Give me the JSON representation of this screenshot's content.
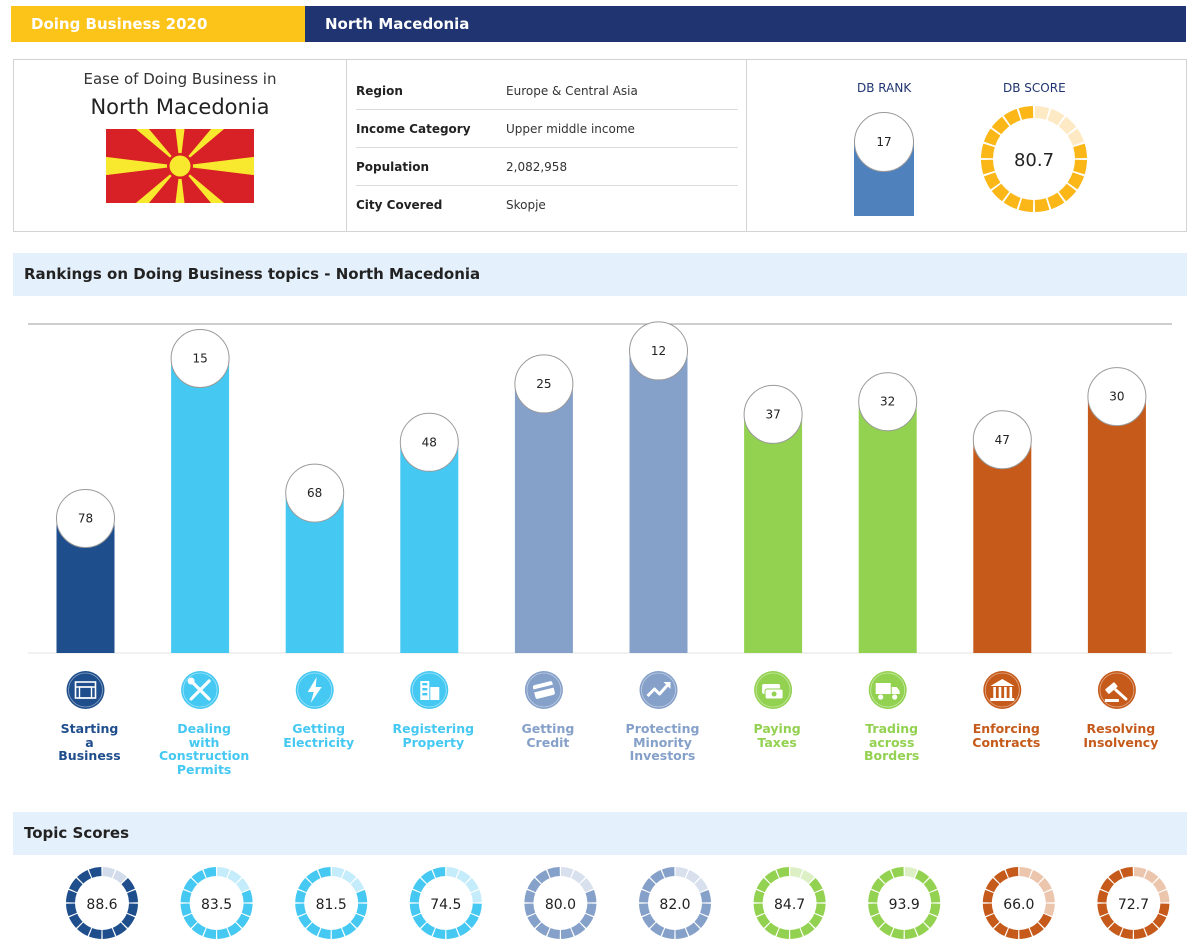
{
  "header": {
    "left": "Doing Business  2020",
    "right": "North Macedonia"
  },
  "info": {
    "subtitle": "Ease of Doing Business in",
    "country": "North Macedonia",
    "rows": [
      {
        "key": "Region",
        "value": "Europe & Central Asia"
      },
      {
        "key": "Income Category",
        "value": "Upper middle income"
      },
      {
        "key": "Population",
        "value": "2,082,958"
      },
      {
        "key": "City Covered",
        "value": "Skopje"
      }
    ],
    "rank_label": "DB RANK",
    "rank_value": "17",
    "score_label": "DB SCORE",
    "score_value": "80.7",
    "score_fraction": 0.807
  },
  "sections": {
    "rankings": "Rankings on Doing Business topics - North Macedonia",
    "scores": "Topic Scores"
  },
  "colors": {
    "header_yellow": "#fcc419",
    "header_navy": "#1f3470",
    "flag_red": "#d82126",
    "flag_yellow": "#f8e92e",
    "score_gold": "#fbb718"
  },
  "chart_data": {
    "type": "bar",
    "categories": [
      "Starting a Business",
      "Dealing with Construction Permits",
      "Getting Electricity",
      "Registering Property",
      "Getting Credit",
      "Protecting Minority Investors",
      "Paying Taxes",
      "Trading across Borders",
      "Enforcing Contracts",
      "Resolving Insolvency"
    ],
    "label_lines": [
      [
        "Starting",
        "a",
        "Business"
      ],
      [
        "Dealing",
        "with",
        "Construction",
        "Permits"
      ],
      [
        "Getting",
        "Electricity"
      ],
      [
        "Registering",
        "Property"
      ],
      [
        "Getting",
        "Credit"
      ],
      [
        "Protecting",
        "Minority",
        "Investors"
      ],
      [
        "Paying",
        "Taxes"
      ],
      [
        "Trading",
        "across",
        "Borders"
      ],
      [
        "Enforcing",
        "Contracts"
      ],
      [
        "Resolving",
        "Insolvency"
      ]
    ],
    "ranks": [
      78,
      15,
      68,
      48,
      25,
      12,
      37,
      32,
      47,
      30
    ],
    "scores": [
      88.6,
      83.5,
      81.5,
      74.5,
      80.0,
      82.0,
      84.7,
      93.9,
      66.0,
      72.7
    ],
    "score_labels": [
      "88.6",
      "83.5",
      "81.5",
      "74.5",
      "80.0",
      "82.0",
      "84.7",
      "93.9",
      "66.0",
      "72.7"
    ],
    "colors": [
      "#1f4e8c",
      "#45c8f2",
      "#45c8f2",
      "#45c8f2",
      "#85a0c9",
      "#85a0c9",
      "#93d150",
      "#93d150",
      "#c55a1a",
      "#c55a1a"
    ],
    "light_colors": [
      "#d3dcea",
      "#c4ecfa",
      "#c4ecfa",
      "#c4ecfa",
      "#d8e0ee",
      "#d8e0ee",
      "#dcefc5",
      "#dcefc5",
      "#ecc5ad",
      "#ecc5ad"
    ],
    "icons": [
      "building-icon",
      "tools-icon",
      "lightning-icon",
      "city-icon",
      "credit-card-icon",
      "trend-up-icon",
      "money-icon",
      "truck-icon",
      "courthouse-icon",
      "gavel-icon"
    ]
  }
}
